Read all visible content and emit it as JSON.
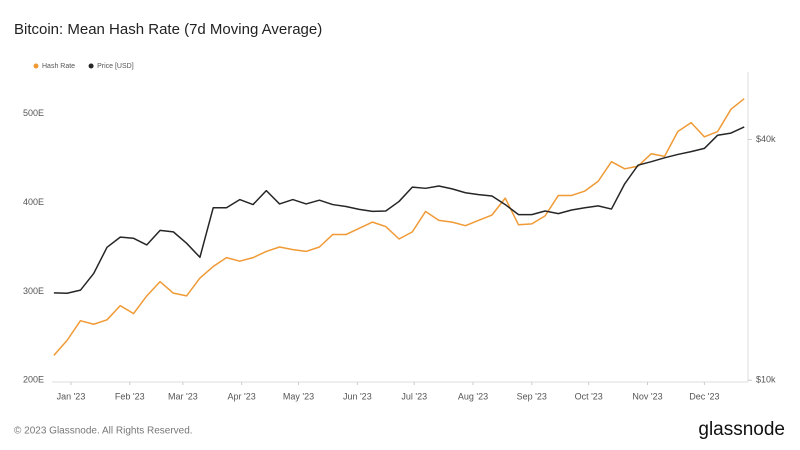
{
  "chart_data": {
    "type": "line",
    "title": "Bitcoin: Mean Hash Rate (7d Moving Average)",
    "footer": "© 2023 Glassnode. All Rights Reserved.",
    "brand": "glassnode",
    "legend": "top-left",
    "grid": false,
    "xlim": [
      "2022-12-22",
      "2023-12-24"
    ],
    "xticks": [
      {
        "value": "2023-01-01",
        "label": "Jan '23"
      },
      {
        "value": "2023-02-01",
        "label": "Feb '23"
      },
      {
        "value": "2023-03-01",
        "label": "Mar '23"
      },
      {
        "value": "2023-04-01",
        "label": "Apr '23"
      },
      {
        "value": "2023-05-01",
        "label": "May '23"
      },
      {
        "value": "2023-06-01",
        "label": "Jun '23"
      },
      {
        "value": "2023-07-01",
        "label": "Jul '23"
      },
      {
        "value": "2023-08-01",
        "label": "Aug '23"
      },
      {
        "value": "2023-09-01",
        "label": "Sep '23"
      },
      {
        "value": "2023-10-01",
        "label": "Oct '23"
      },
      {
        "value": "2023-11-01",
        "label": "Nov '23"
      },
      {
        "value": "2023-12-01",
        "label": "Dec '23"
      }
    ],
    "ylim": [
      198,
      547
    ],
    "yticks": [
      {
        "value": 200,
        "label": "200E"
      },
      {
        "value": 300,
        "label": "300E"
      },
      {
        "value": 400,
        "label": "400E"
      },
      {
        "value": 500,
        "label": "500E"
      }
    ],
    "y2lim": [
      9900,
      59000
    ],
    "y2scale": "log",
    "y2ticks": [
      {
        "value": 10000,
        "label": "$10k"
      },
      {
        "value": 40000,
        "label": "$40k"
      }
    ],
    "x": [
      "2022-12-23",
      "2022-12-30",
      "2023-01-06",
      "2023-01-13",
      "2023-01-20",
      "2023-01-27",
      "2023-02-03",
      "2023-02-10",
      "2023-02-17",
      "2023-02-24",
      "2023-03-03",
      "2023-03-10",
      "2023-03-17",
      "2023-03-24",
      "2023-03-31",
      "2023-04-07",
      "2023-04-14",
      "2023-04-21",
      "2023-04-28",
      "2023-05-05",
      "2023-05-12",
      "2023-05-19",
      "2023-05-26",
      "2023-06-02",
      "2023-06-09",
      "2023-06-16",
      "2023-06-23",
      "2023-06-30",
      "2023-07-07",
      "2023-07-14",
      "2023-07-21",
      "2023-07-28",
      "2023-08-04",
      "2023-08-11",
      "2023-08-18",
      "2023-08-25",
      "2023-09-01",
      "2023-09-08",
      "2023-09-15",
      "2023-09-22",
      "2023-09-29",
      "2023-10-06",
      "2023-10-13",
      "2023-10-20",
      "2023-10-27",
      "2023-11-03",
      "2023-11-10",
      "2023-11-17",
      "2023-11-24",
      "2023-12-01",
      "2023-12-08",
      "2023-12-15",
      "2023-12-22"
    ],
    "series": [
      {
        "name": "Hash Rate",
        "color": "#f09a36",
        "axis": "y",
        "values": [
          228,
          245,
          267,
          263,
          268,
          284,
          275,
          295,
          311,
          298,
          295,
          315,
          328,
          338,
          334,
          338,
          345,
          350,
          347,
          345,
          350,
          364,
          364,
          371,
          378,
          373,
          359,
          367,
          390,
          380,
          378,
          374,
          380,
          386,
          405,
          375,
          376,
          385,
          408,
          408,
          413,
          424,
          446,
          438,
          441,
          455,
          452,
          480,
          490,
          474,
          480,
          505,
          517
        ]
      },
      {
        "name": "Price [USD]",
        "color": "#262626",
        "axis": "y2",
        "values": [
          16540,
          16500,
          16800,
          18500,
          21500,
          22800,
          22650,
          21800,
          23700,
          23500,
          22000,
          20300,
          27000,
          27000,
          28300,
          27500,
          29800,
          27600,
          28300,
          27600,
          28200,
          27500,
          27200,
          26750,
          26450,
          26500,
          28000,
          30400,
          30200,
          30600,
          30100,
          29440,
          29120,
          28900,
          27500,
          25950,
          25950,
          26500,
          26100,
          26650,
          27000,
          27300,
          26800,
          31000,
          34500,
          35200,
          36000,
          36700,
          37300,
          38000,
          41000,
          41500,
          43000
        ]
      }
    ]
  }
}
